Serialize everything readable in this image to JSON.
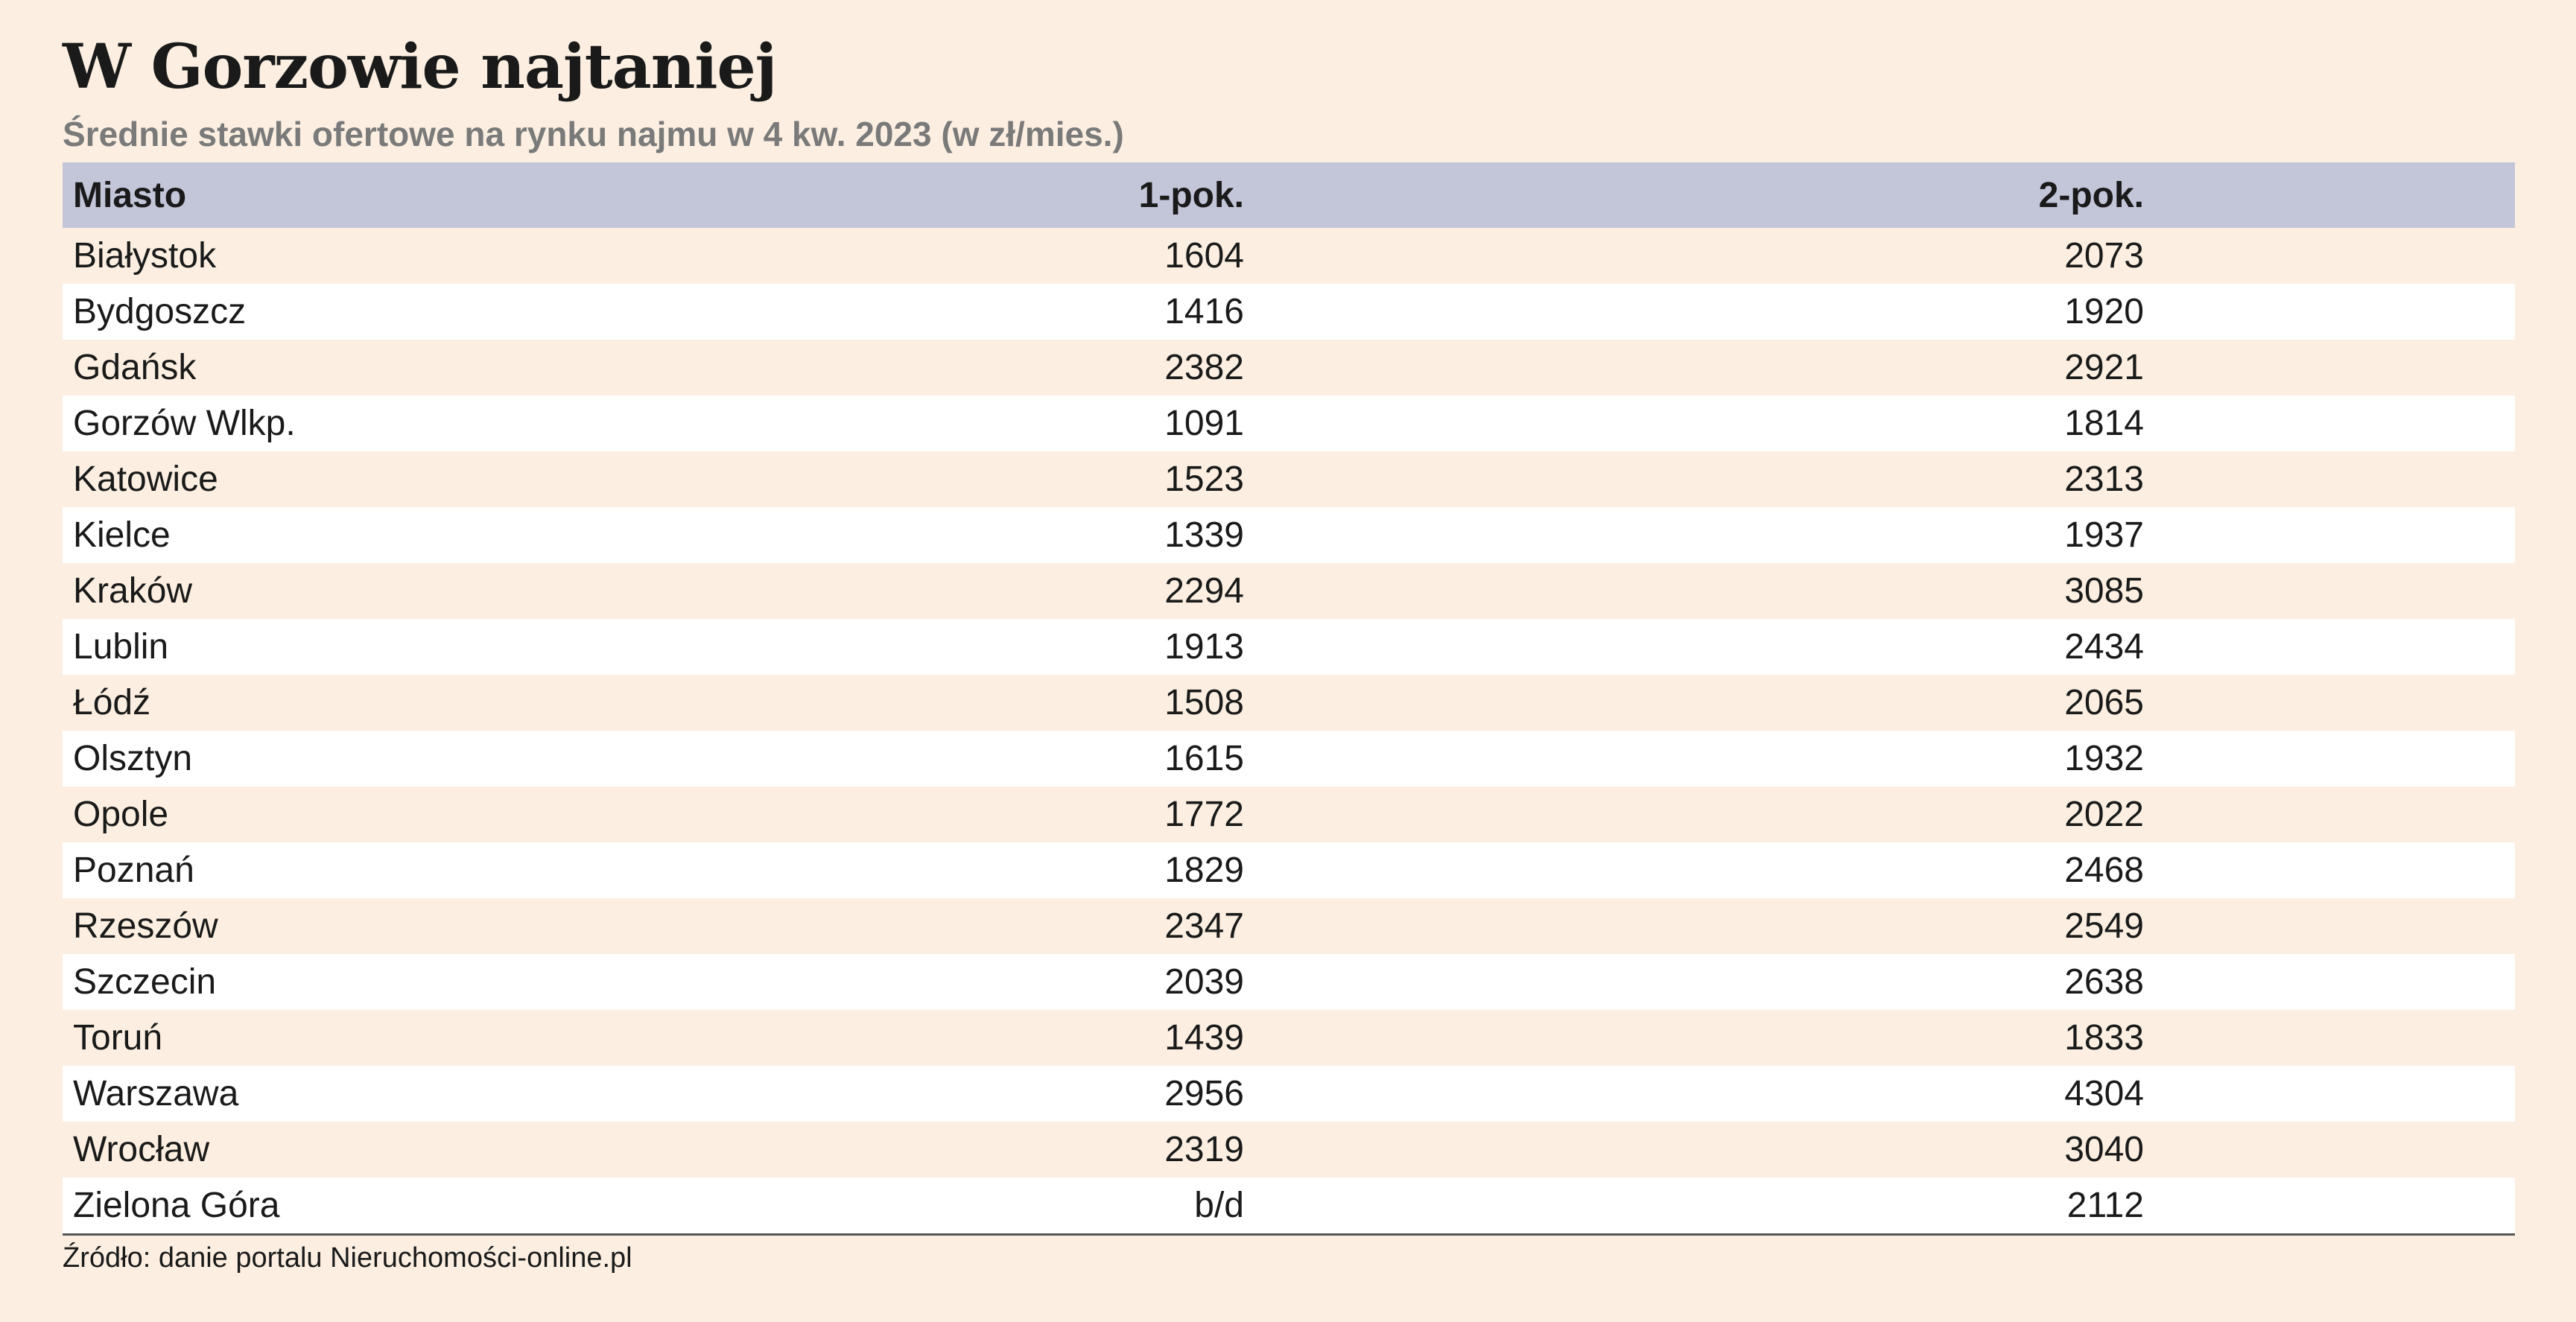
{
  "title": "W Gorzowie najtaniej",
  "subtitle": "Średnie stawki ofertowe na rynku najmu w 4 kw. 2023 (w zł/mies.)",
  "source": "Źródło: danie portalu Nieruchomości-online.pl",
  "colors": {
    "background": "#fcefe2",
    "header_row": "#c2c6d8",
    "alt_row": "#ffffff"
  },
  "chart_data": {
    "type": "table",
    "columns": [
      "Miasto",
      "1-pok.",
      "2-pok."
    ],
    "rows": [
      [
        "Białystok",
        "1604",
        "2073"
      ],
      [
        "Bydgoszcz",
        "1416",
        "1920"
      ],
      [
        "Gdańsk",
        "2382",
        "2921"
      ],
      [
        "Gorzów Wlkp.",
        "1091",
        "1814"
      ],
      [
        "Katowice",
        "1523",
        "2313"
      ],
      [
        "Kielce",
        "1339",
        "1937"
      ],
      [
        "Kraków",
        "2294",
        "3085"
      ],
      [
        "Lublin",
        "1913",
        "2434"
      ],
      [
        "Łódź",
        "1508",
        "2065"
      ],
      [
        "Olsztyn",
        "1615",
        "1932"
      ],
      [
        "Opole",
        "1772",
        "2022"
      ],
      [
        "Poznań",
        "1829",
        "2468"
      ],
      [
        "Rzeszów",
        "2347",
        "2549"
      ],
      [
        "Szczecin",
        "2039",
        "2638"
      ],
      [
        "Toruń",
        "1439",
        "1833"
      ],
      [
        "Warszawa",
        "2956",
        "4304"
      ],
      [
        "Wrocław",
        "2319",
        "3040"
      ],
      [
        "Zielona Góra",
        "b/d",
        "2112"
      ]
    ]
  }
}
